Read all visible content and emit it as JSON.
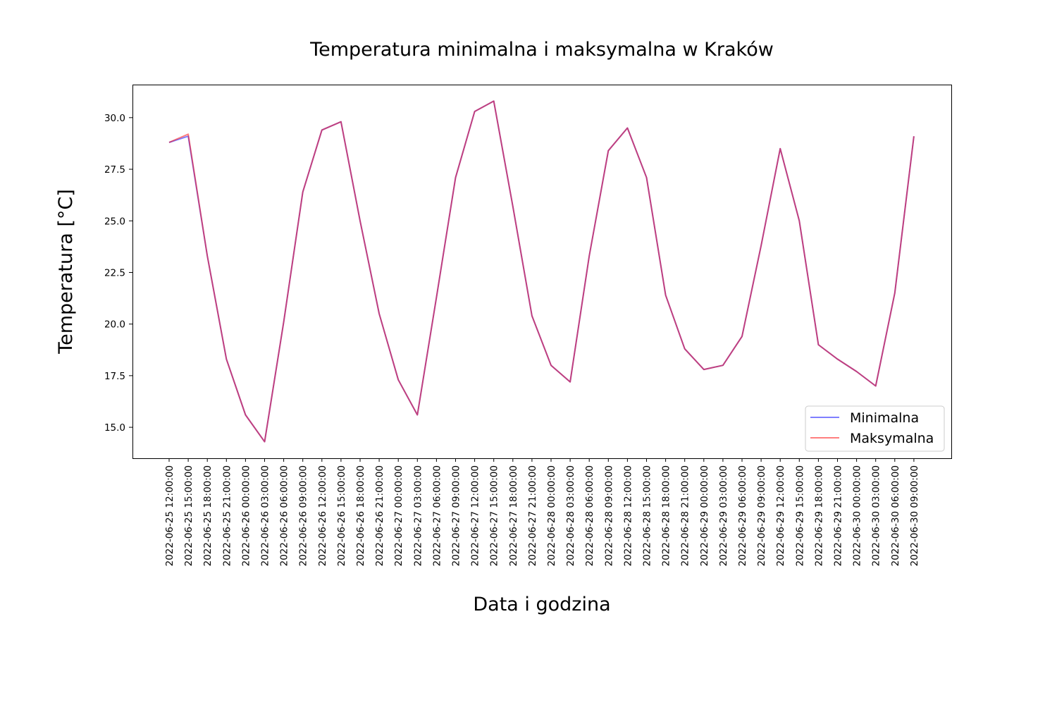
{
  "chart_data": {
    "type": "line",
    "title": "Temperatura minimalna i maksymalna w Kraków",
    "xlabel": "Data i godzina",
    "ylabel": "Temperatura [°C]",
    "ylim": [
      13.5,
      31.6
    ],
    "yticks": [
      15.0,
      17.5,
      20.0,
      22.5,
      25.0,
      27.5,
      30.0
    ],
    "ytick_labels": [
      "15.0",
      "17.5",
      "20.0",
      "22.5",
      "25.0",
      "27.5",
      "30.0"
    ],
    "grid": false,
    "legend_position": "lower-right",
    "x": [
      "2022-06-25 12:00:00",
      "2022-06-25 15:00:00",
      "2022-06-25 18:00:00",
      "2022-06-25 21:00:00",
      "2022-06-26 00:00:00",
      "2022-06-26 03:00:00",
      "2022-06-26 06:00:00",
      "2022-06-26 09:00:00",
      "2022-06-26 12:00:00",
      "2022-06-26 15:00:00",
      "2022-06-26 18:00:00",
      "2022-06-26 21:00:00",
      "2022-06-27 00:00:00",
      "2022-06-27 03:00:00",
      "2022-06-27 06:00:00",
      "2022-06-27 09:00:00",
      "2022-06-27 12:00:00",
      "2022-06-27 15:00:00",
      "2022-06-27 18:00:00",
      "2022-06-27 21:00:00",
      "2022-06-28 00:00:00",
      "2022-06-28 03:00:00",
      "2022-06-28 06:00:00",
      "2022-06-28 09:00:00",
      "2022-06-28 12:00:00",
      "2022-06-28 15:00:00",
      "2022-06-28 18:00:00",
      "2022-06-28 21:00:00",
      "2022-06-29 00:00:00",
      "2022-06-29 03:00:00",
      "2022-06-29 06:00:00",
      "2022-06-29 09:00:00",
      "2022-06-29 12:00:00",
      "2022-06-29 15:00:00",
      "2022-06-29 18:00:00",
      "2022-06-29 21:00:00",
      "2022-06-30 00:00:00",
      "2022-06-30 03:00:00",
      "2022-06-30 06:00:00",
      "2022-06-30 09:00:00"
    ],
    "series": [
      {
        "name": "Minimalna",
        "color": "#0000ff",
        "alpha": 0.5,
        "values": [
          28.8,
          29.1,
          23.3,
          18.3,
          15.6,
          14.3,
          20.1,
          26.4,
          29.4,
          29.8,
          25.0,
          20.5,
          17.3,
          15.6,
          21.3,
          27.1,
          30.3,
          30.8,
          25.7,
          20.4,
          18.0,
          17.2,
          23.3,
          28.4,
          29.5,
          27.1,
          21.4,
          18.8,
          17.8,
          18.0,
          19.4,
          23.8,
          28.5,
          25.0,
          19.0,
          18.3,
          17.7,
          17.0,
          21.5,
          29.1
        ]
      },
      {
        "name": "Maksymalna",
        "color": "#ff0000",
        "alpha": 0.5,
        "values": [
          28.8,
          29.2,
          23.3,
          18.3,
          15.6,
          14.3,
          20.1,
          26.4,
          29.4,
          29.8,
          25.0,
          20.5,
          17.3,
          15.6,
          21.3,
          27.1,
          30.3,
          30.8,
          25.7,
          20.4,
          18.0,
          17.2,
          23.3,
          28.4,
          29.5,
          27.1,
          21.4,
          18.8,
          17.8,
          18.0,
          19.4,
          23.8,
          28.5,
          25.0,
          19.0,
          18.3,
          17.7,
          17.0,
          21.5,
          29.1
        ]
      }
    ]
  }
}
